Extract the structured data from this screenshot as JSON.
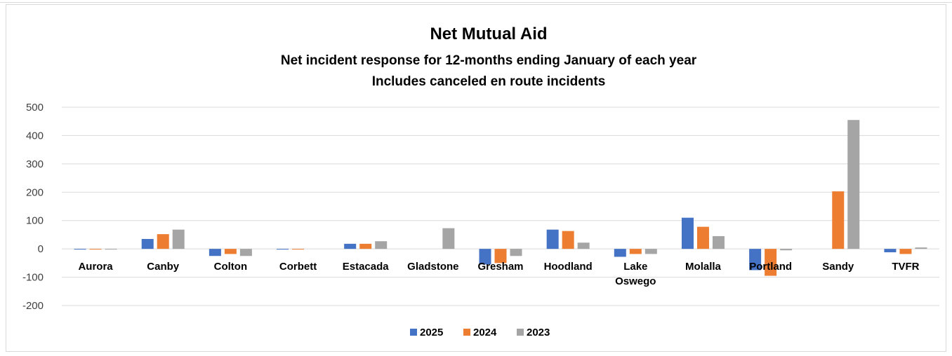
{
  "chart_data": {
    "type": "bar",
    "title": "Net Mutual Aid",
    "subtitle_lines": [
      "Net incident response for 12-months ending January of each year",
      "Includes canceled en route incidents"
    ],
    "categories": [
      "Aurora",
      "Canby",
      "Colton",
      "Corbett",
      "Estacada",
      "Gladstone",
      "Gresham",
      "Hoodland",
      "Lake Oswego",
      "Molalla",
      "Portland",
      "Sandy",
      "TVFR"
    ],
    "category_lines": [
      [
        "Aurora"
      ],
      [
        "Canby"
      ],
      [
        "Colton"
      ],
      [
        "Corbett"
      ],
      [
        "Estacada"
      ],
      [
        "Gladstone"
      ],
      [
        "Gresham"
      ],
      [
        "Hoodland"
      ],
      [
        "Lake",
        "Oswego"
      ],
      [
        "Molalla"
      ],
      [
        "Portland"
      ],
      [
        "Sandy"
      ],
      [
        "TVFR"
      ]
    ],
    "series": [
      {
        "name": "2025",
        "color": "#4472c4",
        "values": [
          -2,
          35,
          -25,
          -2,
          18,
          0,
          -55,
          68,
          -28,
          110,
          -75,
          0,
          -12
        ]
      },
      {
        "name": "2024",
        "color": "#ed7d31",
        "values": [
          -2,
          52,
          -18,
          -2,
          18,
          0,
          -50,
          63,
          -18,
          78,
          -95,
          203,
          -18
        ]
      },
      {
        "name": "2023",
        "color": "#a5a5a5",
        "values": [
          -2,
          68,
          -25,
          0,
          27,
          73,
          -25,
          22,
          -18,
          45,
          -5,
          455,
          5
        ]
      }
    ],
    "yticks": [
      500,
      400,
      300,
      200,
      100,
      0,
      -100,
      -200
    ],
    "ylim": [
      -200,
      500
    ],
    "grid": true,
    "legend": "bottom"
  }
}
